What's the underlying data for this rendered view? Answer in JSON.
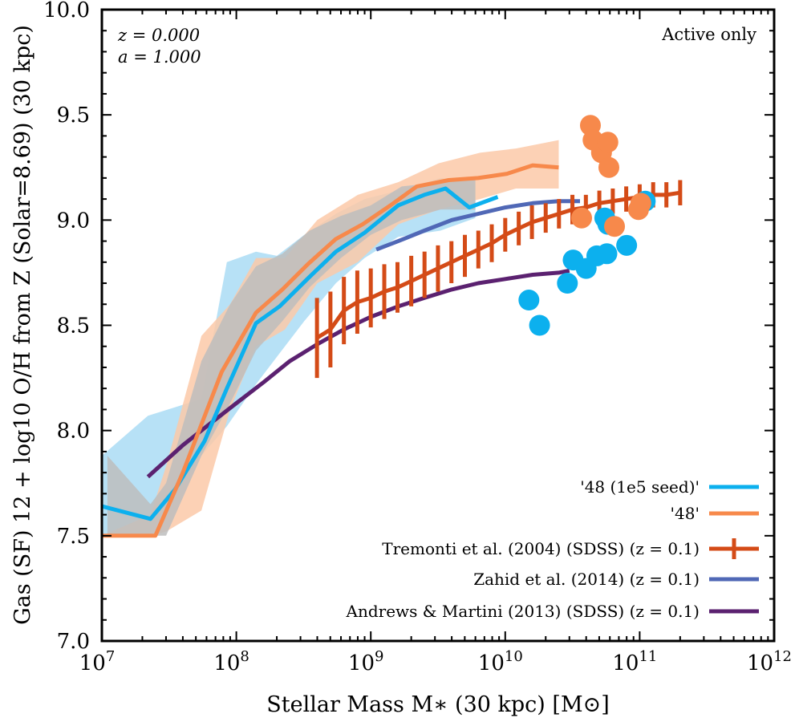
{
  "chart_data": {
    "type": "line",
    "xlabel": "Stellar Mass M∗ (30 kpc) [M⊙]",
    "ylabel": "Gas (SF) 12 + log10 O/H from Z (Solar=8.69) (30 kpc)",
    "xscale": "log",
    "xlim": [
      10000000.0,
      1000000000000.0
    ],
    "ylim": [
      7.0,
      10.0
    ],
    "x_tick_labels": [
      "10^7",
      "10^8",
      "10^9",
      "10^10",
      "10^11",
      "10^12"
    ],
    "y_tick_labels": [
      "7.0",
      "7.5",
      "8.0",
      "8.5",
      "9.0",
      "9.5",
      "10.0"
    ],
    "annotations": {
      "redshift": "z = 0.000",
      "scale_factor": "a = 1.000",
      "selection": "Active only"
    },
    "legend_position": "bottom-right",
    "colors": {
      "blue": "#0cb0ee",
      "orange": "#f7894b",
      "red": "#d44b17",
      "slate": "#5068b6",
      "purple": "#5b2170",
      "band_gray": "#bdbdbd",
      "band_blue": "#aadcf4",
      "band_orange": "#fcc9a8"
    },
    "bands": [
      {
        "color": "band_blue",
        "x": [
          10000000.0,
          22000000.0,
          55000000.0,
          85000000.0,
          140000000.0,
          200000000.0,
          320000000.0,
          550000000.0,
          900000000.0,
          1600000000.0,
          3300000000.0,
          6000000000.0
        ],
        "upper": [
          7.88,
          8.07,
          8.15,
          8.8,
          8.85,
          8.83,
          8.93,
          9.03,
          9.1,
          9.14,
          9.2,
          9.17
        ],
        "lower": [
          7.5,
          7.5,
          7.88,
          8.02,
          8.22,
          8.35,
          8.52,
          8.7,
          8.82,
          8.92,
          8.95,
          9.01
        ]
      },
      {
        "color": "band_orange",
        "x": [
          10000000.0,
          23000000.0,
          30000000.0,
          55000000.0,
          90000000.0,
          140000000.0,
          230000000.0,
          400000000.0,
          800000000.0,
          1600000000.0,
          3200000000.0,
          6500000000.0,
          12000000000.0,
          25000000000.0
        ],
        "upper": [
          7.5,
          7.6,
          7.83,
          8.45,
          8.6,
          8.82,
          8.82,
          9.0,
          9.12,
          9.18,
          9.27,
          9.32,
          9.34,
          9.38
        ],
        "lower": [
          7.5,
          7.5,
          7.52,
          7.62,
          8.1,
          8.4,
          8.48,
          8.7,
          8.8,
          8.98,
          9.05,
          9.1,
          9.15,
          9.15
        ]
      },
      {
        "color": "band_gray",
        "x": [
          11000000.0,
          23000000.0,
          30000000.0,
          55000000.0,
          90000000.0,
          140000000.0,
          220000000.0,
          350000000.0,
          600000000.0,
          1000000000.0,
          1700000000.0,
          3300000000.0,
          6000000000.0
        ],
        "upper": [
          7.88,
          7.65,
          7.75,
          8.33,
          8.6,
          8.78,
          8.84,
          8.95,
          9.02,
          9.07,
          9.16,
          9.18,
          9.2
        ],
        "lower": [
          7.5,
          7.5,
          7.5,
          7.88,
          8.13,
          8.38,
          8.52,
          8.68,
          8.82,
          8.93,
          9.0,
          9.05,
          9.05
        ]
      }
    ],
    "series": [
      {
        "name": "'48 (1e5 seed)'",
        "color": "blue",
        "style": "line",
        "x": [
          10000000.0,
          23000000.0,
          35000000.0,
          58000000.0,
          85000000.0,
          140000000.0,
          210000000.0,
          350000000.0,
          550000000.0,
          900000000.0,
          1600000000.0,
          2500000000.0,
          3600000000.0,
          5400000000.0,
          8800000000.0
        ],
        "y": [
          7.64,
          7.58,
          7.72,
          7.95,
          8.2,
          8.51,
          8.59,
          8.73,
          8.85,
          8.94,
          9.07,
          9.12,
          9.15,
          9.06,
          9.11
        ]
      },
      {
        "name": "'48'",
        "color": "orange",
        "style": "line",
        "x": [
          10000000.0,
          25000000.0,
          40000000.0,
          78000000.0,
          140000000.0,
          220000000.0,
          340000000.0,
          550000000.0,
          870000000.0,
          1400000000.0,
          2200000000.0,
          3800000000.0,
          6300000000.0,
          10300000000.0,
          16000000000.0,
          25000000000.0
        ],
        "y": [
          7.5,
          7.5,
          7.8,
          8.28,
          8.56,
          8.67,
          8.79,
          8.91,
          8.98,
          9.07,
          9.16,
          9.19,
          9.2,
          9.22,
          9.26,
          9.25
        ]
      },
      {
        "name": "Tremonti et al. (2004) (SDSS) (z = 0.1)",
        "color": "red",
        "style": "errorbar",
        "x": [
          398000000.0,
          501000000.0,
          631000000.0,
          794000000.0,
          1000000000.0,
          1260000000.0,
          1580000000.0,
          2000000000.0,
          2510000000.0,
          3160000000.0,
          3980000000.0,
          5010000000.0,
          6310000000.0,
          7940000000.0,
          10000000000.0,
          12600000000.0,
          15800000000.0,
          20000000000.0,
          25100000000.0,
          31600000000.0,
          39800000000.0,
          50100000000.0,
          63100000000.0,
          79400000000.0,
          100000000000.0,
          126000000000.0,
          158000000000.0,
          200000000000.0
        ],
        "y": [
          8.44,
          8.48,
          8.57,
          8.61,
          8.63,
          8.66,
          8.68,
          8.71,
          8.74,
          8.77,
          8.8,
          8.83,
          8.86,
          8.89,
          8.93,
          8.96,
          8.99,
          9.01,
          9.03,
          9.05,
          9.06,
          9.08,
          9.09,
          9.1,
          9.11,
          9.12,
          9.12,
          9.13
        ],
        "yerr": [
          0.19,
          0.18,
          0.16,
          0.15,
          0.14,
          0.13,
          0.12,
          0.12,
          0.11,
          0.11,
          0.1,
          0.1,
          0.09,
          0.09,
          0.08,
          0.08,
          0.08,
          0.07,
          0.07,
          0.07,
          0.06,
          0.06,
          0.06,
          0.06,
          0.06,
          0.06,
          0.06,
          0.06
        ]
      },
      {
        "name": "Zahid et al. (2014) (z = 0.1)",
        "color": "slate",
        "style": "line",
        "x": [
          1100000000.0,
          1600000000.0,
          2500000000.0,
          4000000000.0,
          6300000000.0,
          10000000000.0,
          16000000000.0,
          25000000000.0,
          36000000000.0
        ],
        "y": [
          8.86,
          8.9,
          8.95,
          9.0,
          9.03,
          9.06,
          9.08,
          9.09,
          9.09
        ]
      },
      {
        "name": "Andrews & Martini (2013) (SDSS) (z = 0.1)",
        "color": "purple",
        "style": "line",
        "x": [
          22000000.0,
          40000000.0,
          63000000.0,
          100000000.0,
          160000000.0,
          250000000.0,
          400000000.0,
          630000000.0,
          1000000000.0,
          1600000000.0,
          2500000000.0,
          4000000000.0,
          6300000000.0,
          10000000000.0,
          16000000000.0,
          25000000000.0,
          30000000000.0
        ],
        "y": [
          7.78,
          7.93,
          8.03,
          8.13,
          8.23,
          8.33,
          8.41,
          8.48,
          8.54,
          8.59,
          8.63,
          8.67,
          8.7,
          8.72,
          8.74,
          8.75,
          8.76
        ]
      }
    ],
    "scatter": [
      {
        "color": "blue",
        "points": [
          [
            15000000000.0,
            8.62
          ],
          [
            18000000000.0,
            8.5
          ],
          [
            29000000000.0,
            8.7
          ],
          [
            32000000000.0,
            8.81
          ],
          [
            40000000000.0,
            8.77
          ],
          [
            48000000000.0,
            8.83
          ],
          [
            57000000000.0,
            8.84
          ],
          [
            80000000000.0,
            8.88
          ],
          [
            55000000000.0,
            9.01
          ],
          [
            58000000000.0,
            8.98
          ],
          [
            110000000000.0,
            9.09
          ]
        ]
      },
      {
        "color": "orange",
        "points": [
          [
            43000000000.0,
            9.45
          ],
          [
            45000000000.0,
            9.38
          ],
          [
            52000000000.0,
            9.32
          ],
          [
            58000000000.0,
            9.37
          ],
          [
            59000000000.0,
            9.25
          ],
          [
            37000000000.0,
            9.01
          ],
          [
            65000000000.0,
            8.97
          ],
          [
            98000000000.0,
            9.05
          ],
          [
            102000000000.0,
            9.08
          ]
        ]
      }
    ]
  }
}
